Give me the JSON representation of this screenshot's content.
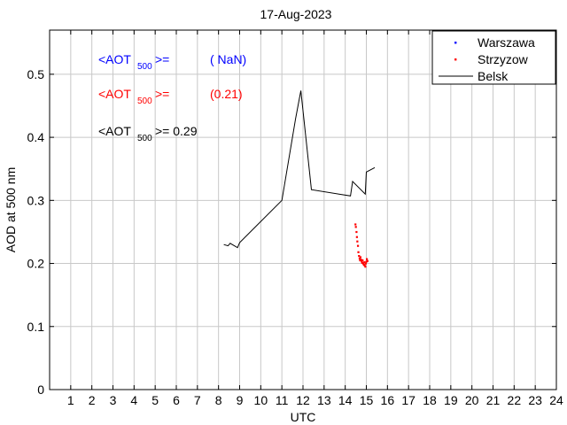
{
  "chart_data": {
    "type": "line",
    "title": "17-Aug-2023",
    "xlabel": "UTC",
    "ylabel": "AOD at 500 nm",
    "xlim": [
      0,
      24
    ],
    "ylim": [
      0,
      0.57
    ],
    "xticks": [
      1,
      2,
      3,
      4,
      5,
      6,
      7,
      8,
      9,
      10,
      11,
      12,
      13,
      14,
      15,
      16,
      17,
      18,
      19,
      20,
      21,
      22,
      23,
      24
    ],
    "xtick_labels": [
      "1",
      "2",
      "3",
      "4",
      "5",
      "6",
      "7",
      "8",
      "9",
      "10",
      "11",
      "12",
      "13",
      "14",
      "15",
      "16",
      "17",
      "18",
      "19",
      "20",
      "21",
      "22",
      "23",
      "24"
    ],
    "yticks": [
      0,
      0.1,
      0.2,
      0.3,
      0.4,
      0.5
    ],
    "ytick_labels": [
      "0",
      "0.1",
      "0.2",
      "0.3",
      "0.4",
      "0.5"
    ],
    "grid": true,
    "legend_position": "top-right",
    "series": [
      {
        "name": "Warszawa",
        "style": "points",
        "color": "#0000ff",
        "x": [],
        "y": []
      },
      {
        "name": "Strzyzow",
        "style": "points",
        "color": "#ff0000",
        "x": [
          14.48,
          14.5,
          14.53,
          14.55,
          14.57,
          14.6,
          14.62,
          14.65,
          14.68,
          14.7,
          14.72,
          14.75,
          14.78,
          14.8,
          14.82,
          14.85,
          14.88,
          14.9,
          14.92,
          14.95,
          14.97,
          15.0,
          15.02,
          15.05
        ],
        "y": [
          0.262,
          0.258,
          0.25,
          0.242,
          0.235,
          0.228,
          0.218,
          0.212,
          0.208,
          0.205,
          0.21,
          0.206,
          0.203,
          0.201,
          0.205,
          0.2,
          0.198,
          0.202,
          0.197,
          0.195,
          0.2,
          0.203,
          0.207,
          0.204
        ]
      },
      {
        "name": "Belsk",
        "style": "line",
        "color": "#000000",
        "x": [
          8.25,
          8.45,
          8.55,
          8.75,
          8.9,
          9.0,
          11.0,
          11.65,
          11.9,
          12.4,
          14.25,
          14.35,
          14.95,
          15.0,
          15.4
        ],
        "y": [
          0.23,
          0.228,
          0.232,
          0.228,
          0.225,
          0.233,
          0.3,
          0.43,
          0.474,
          0.317,
          0.307,
          0.33,
          0.31,
          0.345,
          0.352
        ]
      }
    ],
    "annotations": [
      {
        "label": "<AOT",
        "subscript": "500",
        "equals": ">=",
        "value": "( NaN)",
        "color": "#0000ff"
      },
      {
        "label": "<AOT",
        "subscript": "500",
        "equals": ">=",
        "value": "(0.21)",
        "color": "#ff0000"
      },
      {
        "label": "<AOT",
        "subscript": "500",
        "equals": ">= 0.29",
        "value": "",
        "color": "#000000"
      }
    ]
  }
}
